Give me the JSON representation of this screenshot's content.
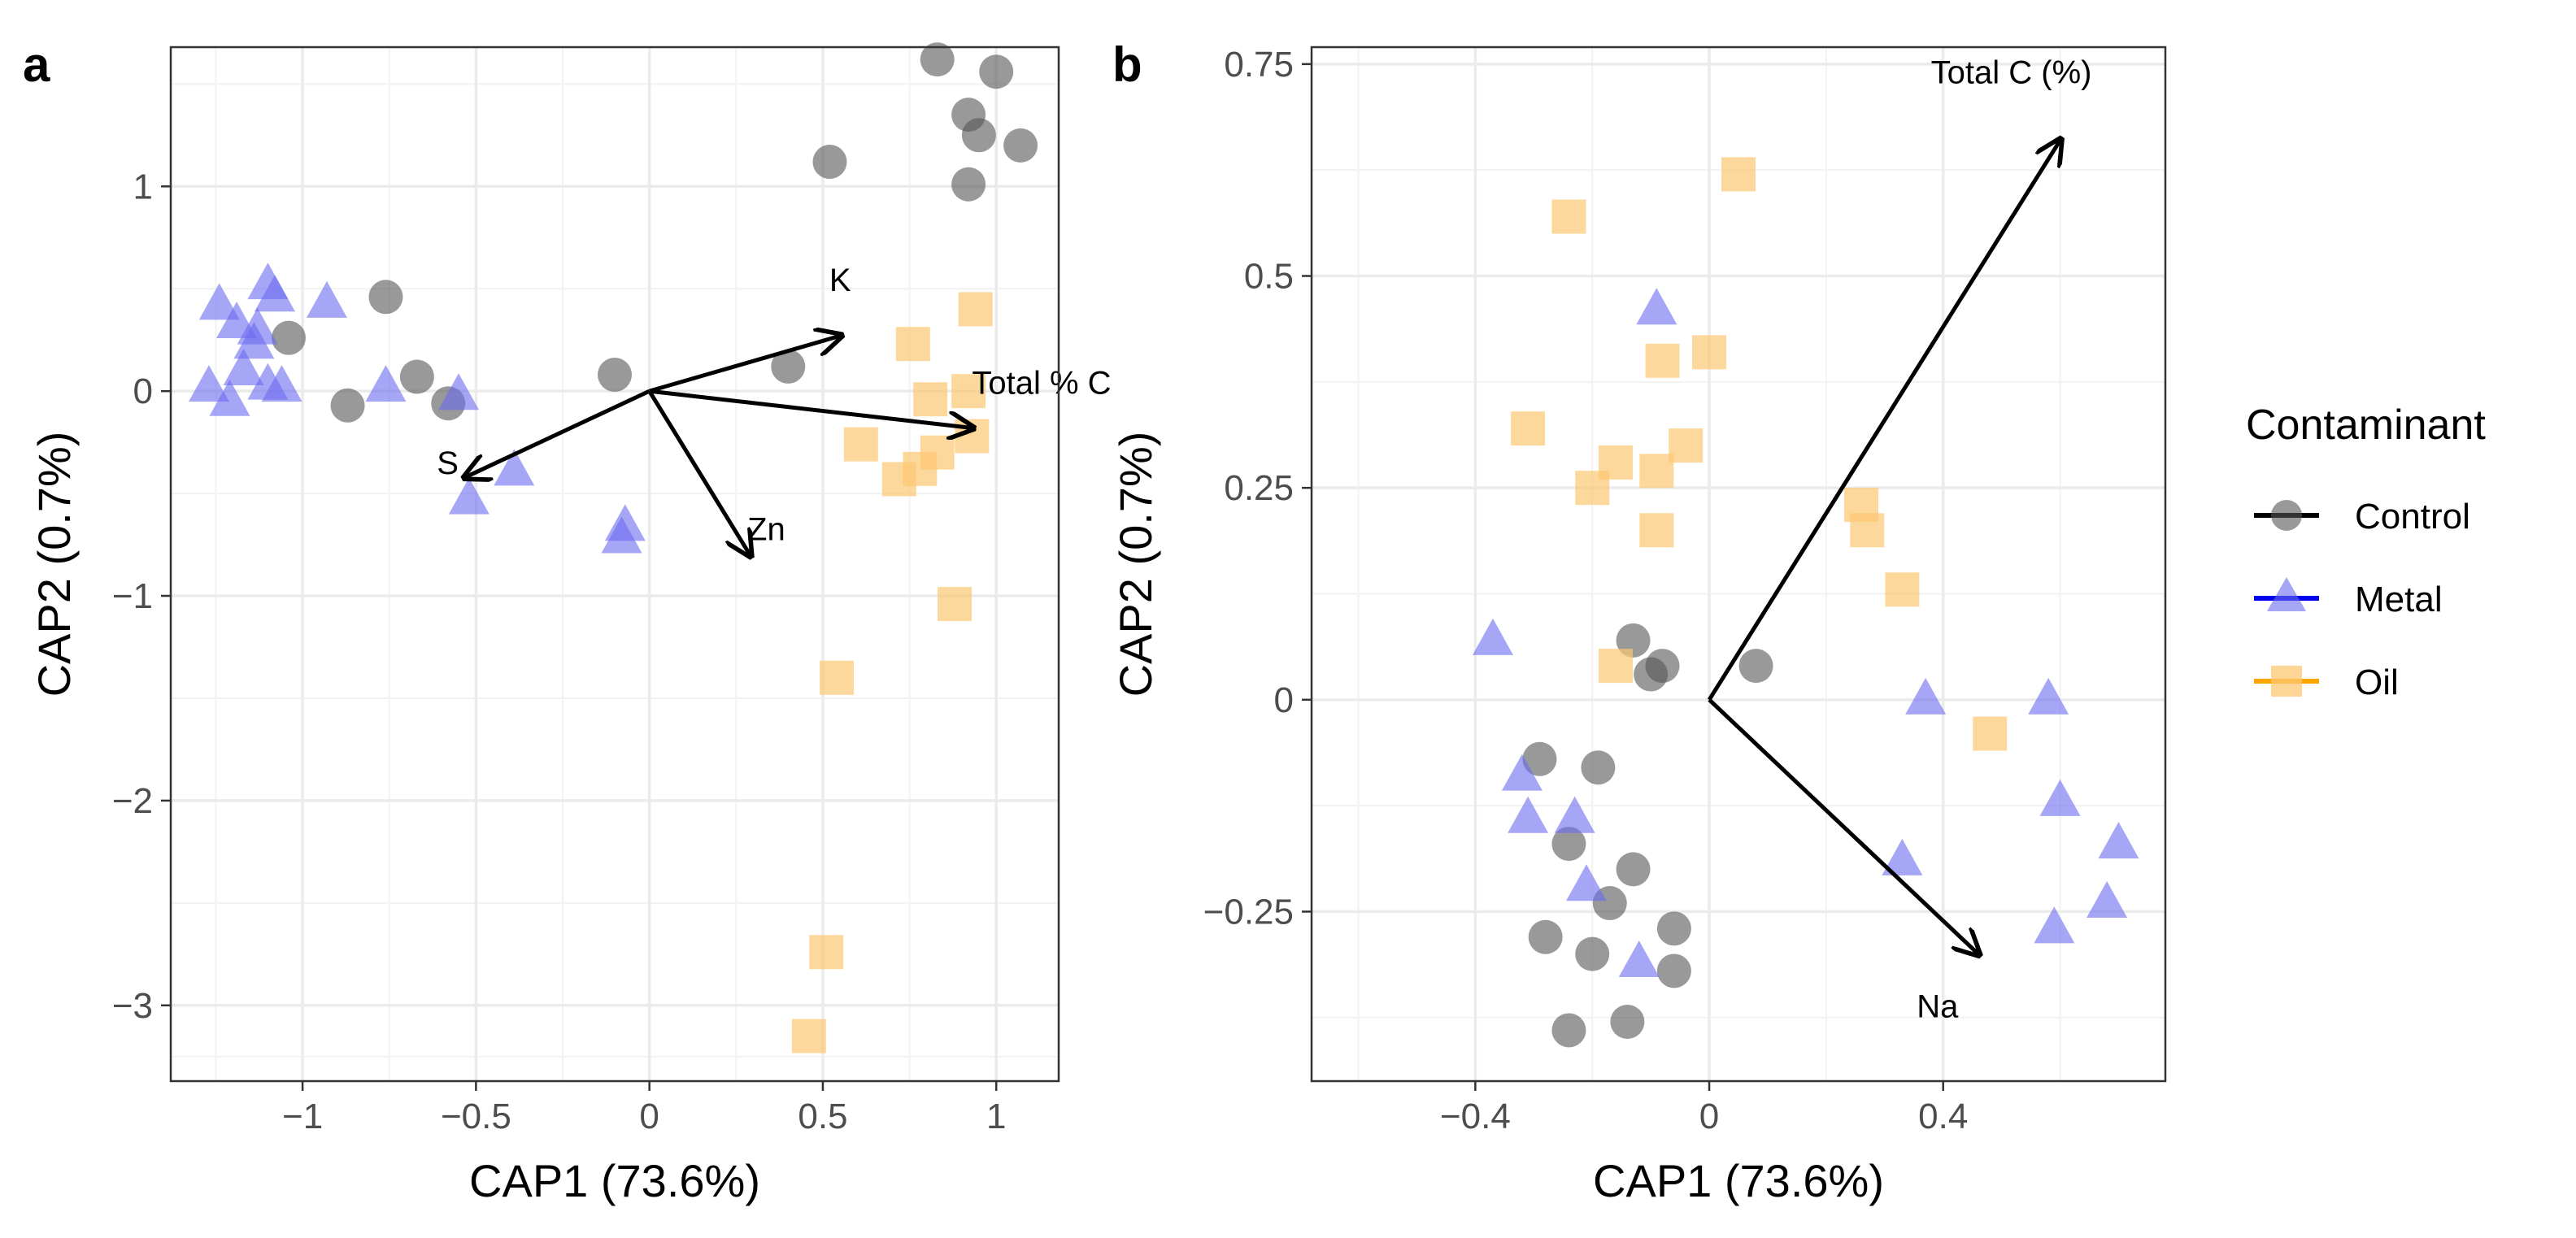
{
  "legend": {
    "title": "Contaminant",
    "items": [
      {
        "label": "Control",
        "color": "#555555",
        "line": "#000000",
        "shape": "circle"
      },
      {
        "label": "Metal",
        "color": "#6b6bf0",
        "line": "#0000ee",
        "shape": "triangle"
      },
      {
        "label": "Oil",
        "color": "#fcc872",
        "line": "#ffa500",
        "shape": "square"
      }
    ]
  },
  "chart_data": [
    {
      "type": "scatter",
      "panel_label": "a",
      "xlabel": "CAP1 (73.6%)",
      "ylabel": "CAP2 (0.7%)",
      "xlim": [
        -1.38,
        1.18
      ],
      "ylim": [
        -3.37,
        1.68
      ],
      "xticks": [
        -1,
        -0.5,
        0,
        0.5,
        1
      ],
      "xtick_labels": [
        "−1",
        "−0.5",
        "0",
        "0.5",
        "1"
      ],
      "yticks": [
        -3,
        -2,
        -1,
        0,
        1
      ],
      "ytick_labels": [
        "−3",
        "−2",
        "−1",
        "0",
        "1"
      ],
      "minor_x": [
        -1.25,
        -0.75,
        -0.25,
        0.25,
        0.75
      ],
      "minor_y": [
        -3.25,
        -2.5,
        -1.5,
        -0.5,
        0.5,
        1.5
      ],
      "series": [
        {
          "name": "Control",
          "points": [
            [
              0.83,
              1.62
            ],
            [
              1.0,
              1.56
            ],
            [
              0.92,
              1.35
            ],
            [
              0.95,
              1.25
            ],
            [
              1.07,
              1.2
            ],
            [
              0.52,
              1.12
            ],
            [
              0.92,
              1.01
            ],
            [
              -0.76,
              0.46
            ],
            [
              -1.04,
              0.26
            ],
            [
              -0.67,
              0.07
            ],
            [
              -0.1,
              0.08
            ],
            [
              -0.58,
              -0.06
            ],
            [
              -0.87,
              -0.07
            ],
            [
              0.4,
              0.12
            ]
          ]
        },
        {
          "name": "Metal",
          "points": [
            [
              -1.24,
              0.42
            ],
            [
              -1.1,
              0.52
            ],
            [
              -1.08,
              0.46
            ],
            [
              -0.93,
              0.43
            ],
            [
              -1.13,
              0.3
            ],
            [
              -1.19,
              0.33
            ],
            [
              -1.14,
              0.23
            ],
            [
              -1.17,
              0.1
            ],
            [
              -1.1,
              0.03
            ],
            [
              -1.27,
              0.02
            ],
            [
              -1.21,
              -0.05
            ],
            [
              -1.06,
              0.02
            ],
            [
              -0.76,
              0.02
            ],
            [
              -0.55,
              -0.02
            ],
            [
              -0.39,
              -0.39
            ],
            [
              -0.52,
              -0.53
            ],
            [
              -0.07,
              -0.66
            ],
            [
              -0.08,
              -0.72
            ]
          ]
        },
        {
          "name": "Oil",
          "points": [
            [
              0.94,
              0.4
            ],
            [
              0.76,
              0.23
            ],
            [
              0.92,
              0.0
            ],
            [
              0.81,
              -0.04
            ],
            [
              0.93,
              -0.22
            ],
            [
              0.61,
              -0.26
            ],
            [
              0.78,
              -0.38
            ],
            [
              0.83,
              -0.3
            ],
            [
              0.72,
              -0.43
            ],
            [
              0.88,
              -1.04
            ],
            [
              0.54,
              -1.4
            ],
            [
              0.51,
              -2.74
            ],
            [
              0.46,
              -3.15
            ]
          ]
        }
      ],
      "vectors": [
        {
          "label": "K",
          "end": [
            0.55,
            0.27
          ]
        },
        {
          "label": "Total % C",
          "end": [
            0.93,
            -0.18
          ]
        },
        {
          "label": "S",
          "end": [
            -0.53,
            -0.42
          ]
        },
        {
          "label": "Zn",
          "end": [
            0.29,
            -0.8
          ]
        }
      ]
    },
    {
      "type": "scatter",
      "panel_label": "b",
      "xlabel": "CAP1 (73.6%)",
      "ylabel": "CAP2 (0.7%)",
      "xlim": [
        -0.68,
        0.78
      ],
      "ylim": [
        -0.45,
        0.77
      ],
      "xticks": [
        -0.4,
        0,
        0.4
      ],
      "xtick_labels": [
        "−0.4",
        "0",
        "0.4"
      ],
      "yticks": [
        -0.25,
        0,
        0.25,
        0.5,
        0.75
      ],
      "ytick_labels": [
        "−0.25",
        "0",
        "0.25",
        "0.5",
        "0.75"
      ],
      "minor_x": [
        -0.6,
        -0.2,
        0.2,
        0.6
      ],
      "minor_y": [
        -0.375,
        -0.125,
        0.125,
        0.375,
        0.625
      ],
      "series": [
        {
          "name": "Control",
          "points": [
            [
              -0.13,
              0.07
            ],
            [
              -0.1,
              0.03
            ],
            [
              -0.08,
              0.04
            ],
            [
              0.08,
              0.04
            ],
            [
              -0.29,
              -0.07
            ],
            [
              -0.19,
              -0.08
            ],
            [
              -0.24,
              -0.17
            ],
            [
              -0.13,
              -0.2
            ],
            [
              -0.17,
              -0.24
            ],
            [
              -0.2,
              -0.3
            ],
            [
              -0.28,
              -0.28
            ],
            [
              -0.06,
              -0.27
            ],
            [
              -0.06,
              -0.32
            ],
            [
              -0.24,
              -0.39
            ],
            [
              -0.14,
              -0.38
            ]
          ]
        },
        {
          "name": "Metal",
          "points": [
            [
              -0.09,
              0.46
            ],
            [
              -0.37,
              0.07
            ],
            [
              -0.32,
              -0.09
            ],
            [
              -0.31,
              -0.14
            ],
            [
              -0.23,
              -0.14
            ],
            [
              -0.21,
              -0.22
            ],
            [
              -0.12,
              -0.31
            ],
            [
              0.37,
              0.0
            ],
            [
              0.58,
              0.0
            ],
            [
              0.6,
              -0.12
            ],
            [
              0.33,
              -0.19
            ],
            [
              0.7,
              -0.17
            ],
            [
              0.68,
              -0.24
            ],
            [
              0.59,
              -0.27
            ]
          ]
        },
        {
          "name": "Oil",
          "points": [
            [
              -0.24,
              0.57
            ],
            [
              0.05,
              0.62
            ],
            [
              0.0,
              0.41
            ],
            [
              -0.08,
              0.4
            ],
            [
              -0.31,
              0.32
            ],
            [
              -0.04,
              0.3
            ],
            [
              -0.16,
              0.28
            ],
            [
              -0.09,
              0.27
            ],
            [
              -0.2,
              0.25
            ],
            [
              -0.09,
              0.2
            ],
            [
              0.26,
              0.23
            ],
            [
              0.27,
              0.2
            ],
            [
              0.33,
              0.13
            ],
            [
              -0.16,
              0.04
            ],
            [
              0.48,
              -0.04
            ]
          ]
        }
      ],
      "vectors": [
        {
          "label": "Total C (%)",
          "end": [
            0.6,
            0.66
          ]
        },
        {
          "label": "Na",
          "end": [
            0.46,
            -0.3
          ]
        }
      ]
    }
  ]
}
